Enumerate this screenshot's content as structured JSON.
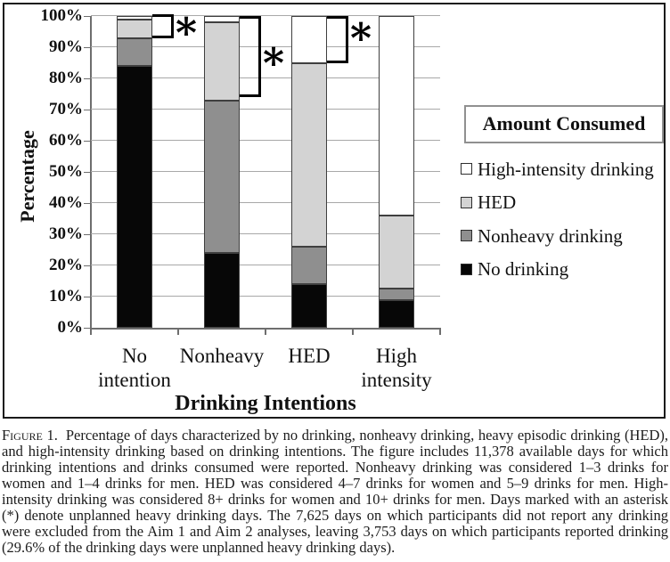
{
  "chart_data": {
    "type": "bar",
    "stacked": true,
    "xlabel": "Drinking Intentions",
    "ylabel": "Percentage",
    "categories": [
      "No intention",
      "Nonheavy",
      "HED",
      "High intensity"
    ],
    "category_display": [
      "No\nintention",
      "Nonheavy",
      "HED",
      "High\nintensity"
    ],
    "series": [
      {
        "name": "No drinking",
        "color": "#070707",
        "values": [
          84,
          24,
          14,
          9
        ]
      },
      {
        "name": "Nonheavy drinking",
        "color": "#8f8f8f",
        "values": [
          9,
          49,
          12,
          3.5
        ]
      },
      {
        "name": "HED",
        "color": "#d3d3d3",
        "values": [
          6,
          25,
          59,
          23.5
        ]
      },
      {
        "name": "High-intensity drinking",
        "color": "#ffffff",
        "values": [
          1,
          2,
          15,
          64
        ]
      }
    ],
    "ylim": [
      0,
      100
    ],
    "ytick_step": 10,
    "ytick_labels": [
      "0%",
      "10%",
      "20%",
      "30%",
      "40%",
      "50%",
      "60%",
      "70%",
      "80%",
      "90%",
      "100%"
    ],
    "grid": true,
    "grid_color": "#a8a8a8",
    "axis_color": "#6e6e6e",
    "annotations": [
      {
        "category_index": 0,
        "from_pct": 93,
        "to_pct": 100,
        "marker": "*",
        "marker_at_pct": 94.5
      },
      {
        "category_index": 1,
        "from_pct": 74,
        "to_pct": 100,
        "marker": "*",
        "marker_at_pct": 85
      },
      {
        "category_index": 2,
        "from_pct": 85,
        "to_pct": 100,
        "marker": "*",
        "marker_at_pct": 93
      }
    ],
    "legend": {
      "title": "Amount Consumed",
      "position": "right",
      "entries": [
        "High-intensity drinking",
        "HED",
        "Nonheavy drinking",
        "No drinking"
      ]
    }
  },
  "caption": {
    "label": "Figure 1.",
    "text": "Percentage of days characterized by no drinking, nonheavy drinking, heavy episodic drinking (HED), and high-intensity drinking based on drinking intentions. The figure includes 11,378 available days for which drinking intentions and drinks consumed were reported. Nonheavy drinking was considered 1–3 drinks for women and 1–4 drinks for men. HED was considered 4–7 drinks for women and 5–9 drinks for men. High-intensity drinking was considered 8+ drinks for women and 10+ drinks for men. Days marked with an asterisk (*) denote unplanned heavy drinking days. The 7,625 days on which participants did not report any drinking were excluded from the Aim 1 and Aim 2 analyses, leaving 3,753 days on which participants reported drinking (29.6% of the drinking days were unplanned heavy drinking days)."
  }
}
